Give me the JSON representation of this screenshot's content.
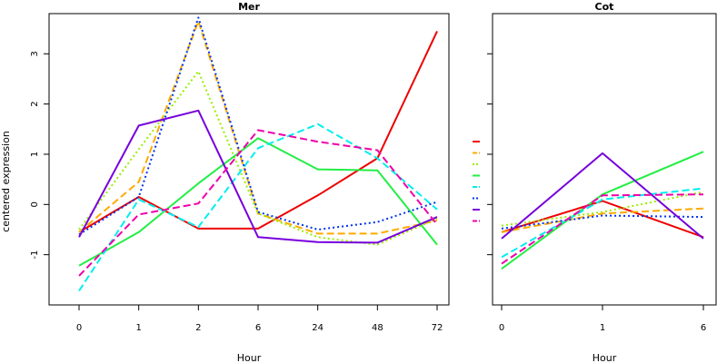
{
  "figure": {
    "ylabel": "centered expression"
  },
  "chart_data": [
    {
      "type": "line",
      "title": "Mer",
      "xlabel": "Hour",
      "ylabel": "centered expression",
      "categories": [
        "0",
        "1",
        "2",
        "6",
        "24",
        "48",
        "72"
      ],
      "ylim": [
        -2.0,
        3.8
      ],
      "yticks": [
        -1,
        0,
        1,
        2,
        3
      ],
      "grid": false,
      "series": [
        {
          "color": "#ee0000",
          "dash": "solid",
          "values": [
            -0.55,
            0.15,
            -0.48,
            -0.48,
            0.18,
            0.92,
            3.45
          ]
        },
        {
          "color": "#ffaa00",
          "dash": "dashed",
          "values": [
            -0.55,
            0.45,
            3.65,
            -0.18,
            -0.58,
            -0.58,
            -0.32
          ]
        },
        {
          "color": "#99ee00",
          "dash": "dotted",
          "values": [
            -0.5,
            1.1,
            2.65,
            -0.18,
            -0.65,
            -0.8,
            -0.28
          ]
        },
        {
          "color": "#22ee44",
          "dash": "solid",
          "values": [
            -1.22,
            -0.55,
            0.42,
            1.32,
            0.7,
            0.68,
            -0.8
          ]
        },
        {
          "color": "#00eeee",
          "dash": "dashed",
          "values": [
            -1.72,
            0.1,
            -0.45,
            1.12,
            1.6,
            0.92,
            -0.1
          ]
        },
        {
          "color": "#0033ee",
          "dash": "dotted",
          "values": [
            -0.6,
            0.15,
            3.72,
            -0.15,
            -0.5,
            -0.35,
            0.05
          ]
        },
        {
          "color": "#7700dd",
          "dash": "solid",
          "values": [
            -0.65,
            1.57,
            1.87,
            -0.65,
            -0.75,
            -0.76,
            -0.25
          ]
        },
        {
          "color": "#ee00aa",
          "dash": "dashed",
          "values": [
            -1.42,
            -0.2,
            0.02,
            1.48,
            1.25,
            1.08,
            -0.4
          ]
        }
      ]
    },
    {
      "type": "line",
      "title": "Cot",
      "xlabel": "Hour",
      "categories": [
        "0",
        "1",
        "6"
      ],
      "ylim": [
        -2.0,
        3.8
      ],
      "grid": false,
      "series": [
        {
          "color": "#ee0000",
          "dash": "solid",
          "values": [
            -0.55,
            0.07,
            -0.65
          ]
        },
        {
          "color": "#ffaa00",
          "dash": "dashed",
          "values": [
            -0.55,
            -0.18,
            -0.08
          ]
        },
        {
          "color": "#99ee00",
          "dash": "dotted",
          "values": [
            -0.42,
            -0.15,
            0.25
          ]
        },
        {
          "color": "#22ee44",
          "dash": "solid",
          "values": [
            -1.28,
            0.2,
            1.05
          ]
        },
        {
          "color": "#00eeee",
          "dash": "dashed",
          "values": [
            -1.05,
            0.1,
            0.32
          ]
        },
        {
          "color": "#0033ee",
          "dash": "dotted",
          "values": [
            -0.48,
            -0.22,
            -0.25
          ]
        },
        {
          "color": "#7700dd",
          "dash": "solid",
          "values": [
            -0.68,
            1.02,
            -0.68
          ]
        },
        {
          "color": "#ee00aa",
          "dash": "dashed",
          "values": [
            -1.18,
            0.18,
            0.2
          ]
        }
      ]
    }
  ]
}
